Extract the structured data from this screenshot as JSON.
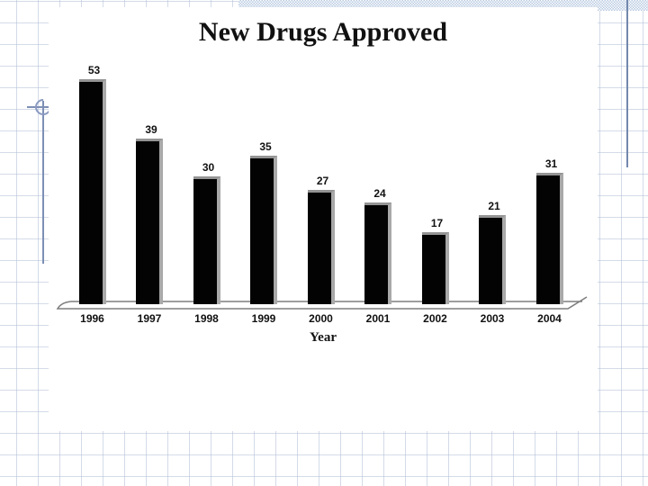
{
  "slide": {
    "title": "New Drugs Approved"
  },
  "chart_data": {
    "type": "bar",
    "title": "New Drugs Approved",
    "categories": [
      "1996",
      "1997",
      "1998",
      "1999",
      "2000",
      "2001",
      "2002",
      "2003",
      "2004"
    ],
    "values": [
      53,
      39,
      30,
      35,
      27,
      24,
      17,
      21,
      31
    ],
    "xlabel": "Year",
    "ylabel": "",
    "ylim": [
      0,
      56
    ],
    "grid": false,
    "legend": "none",
    "value_labels_shown": true,
    "bar_color": "#000000",
    "bar_3d_top_color": "#949494",
    "bar_3d_side_color": "#a9a9a9"
  },
  "template": {
    "accent_band_color": "#b7c9e0",
    "rule_color": "#7388ad",
    "grid_line_color": "#b0bed6",
    "compass_icon_color": "#8a9ac0",
    "floor_outline_color": "#7f7f7f"
  }
}
